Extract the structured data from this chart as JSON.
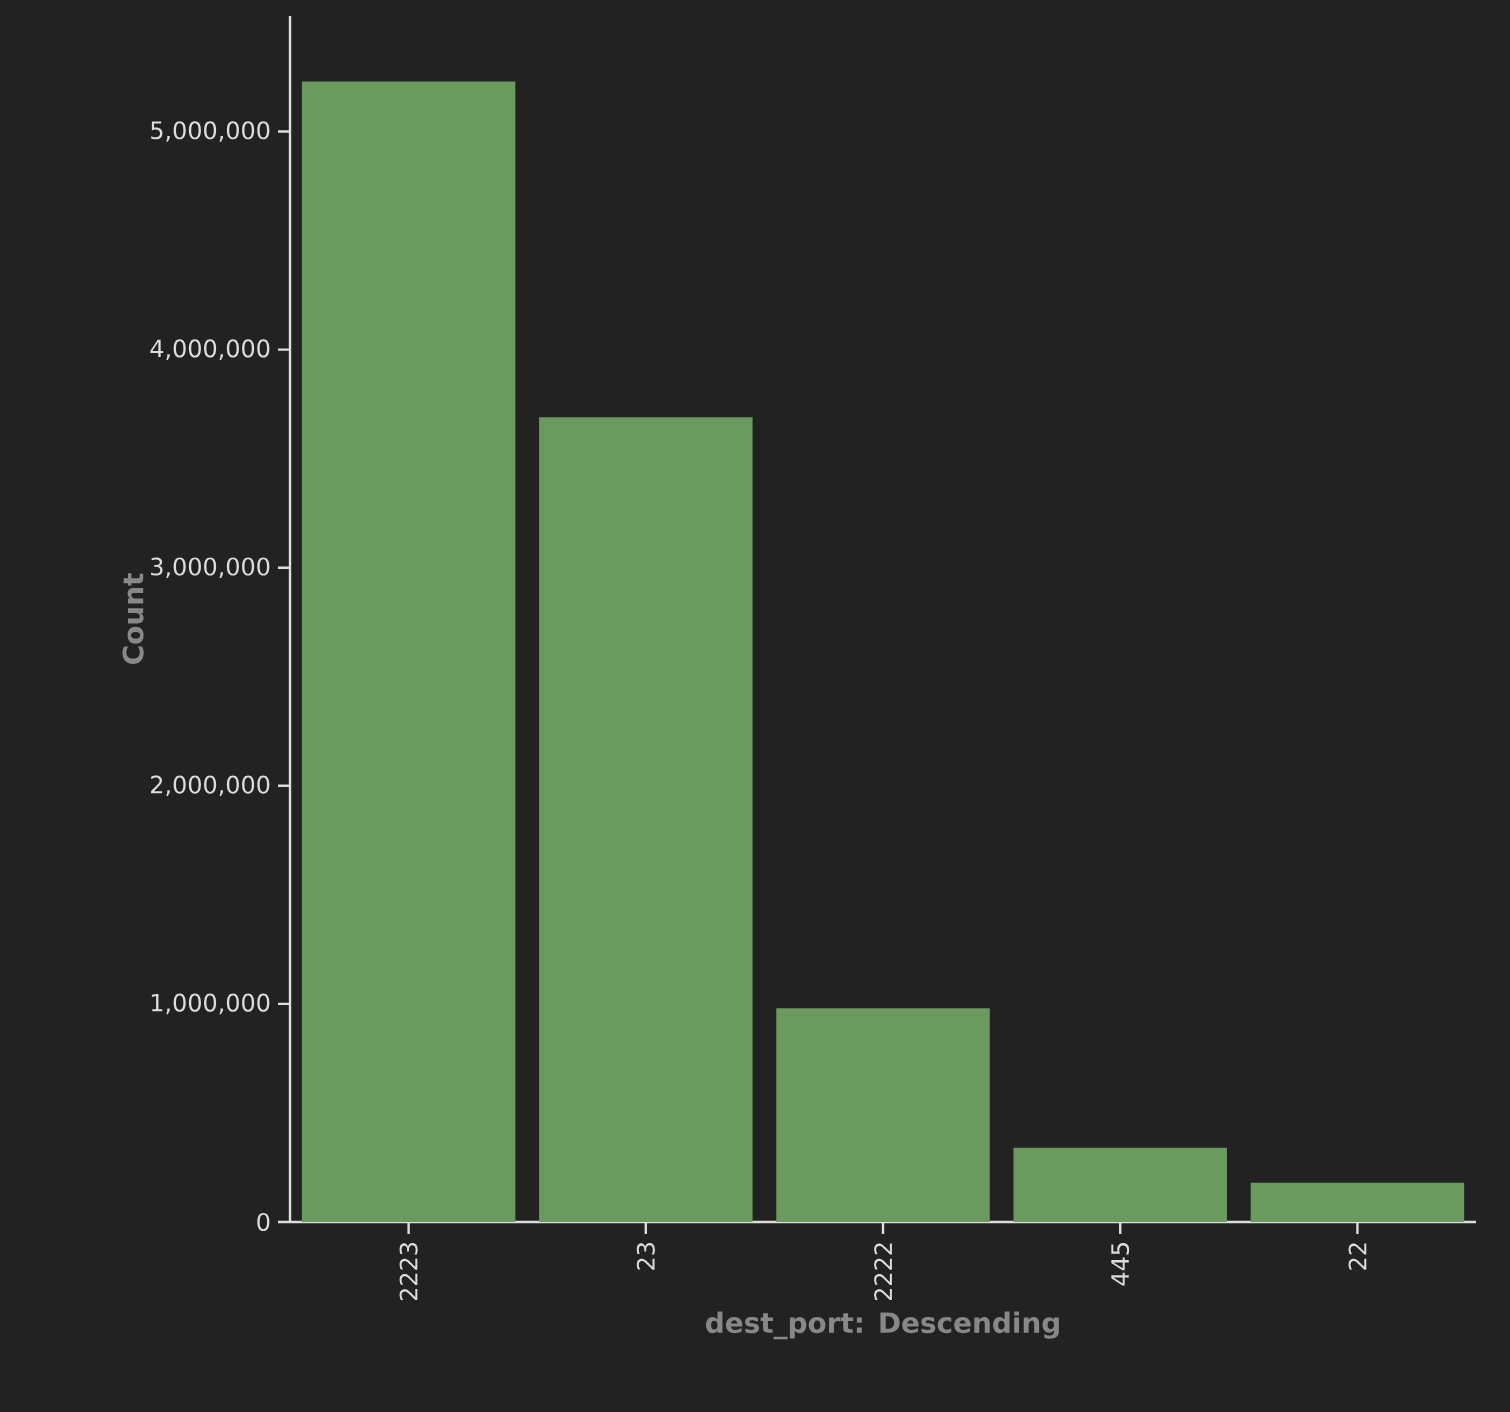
{
  "chart_data": {
    "type": "bar",
    "xlabel": "dest_port: Descending",
    "ylabel": "Count",
    "categories": [
      "2223",
      "23",
      "2222",
      "445",
      "22"
    ],
    "values": [
      5230000,
      3690000,
      980000,
      340000,
      180000
    ],
    "color": "#6a9a5e",
    "ylim": [
      0,
      5530000
    ],
    "yticks": [
      {
        "value": 0,
        "label": "0"
      },
      {
        "value": 1000000,
        "label": "1,000,000"
      },
      {
        "value": 2000000,
        "label": "2,000,000"
      },
      {
        "value": 3000000,
        "label": "3,000,000"
      },
      {
        "value": 4000000,
        "label": "4,000,000"
      },
      {
        "value": 5000000,
        "label": "5,000,000"
      }
    ],
    "grid": false
  }
}
